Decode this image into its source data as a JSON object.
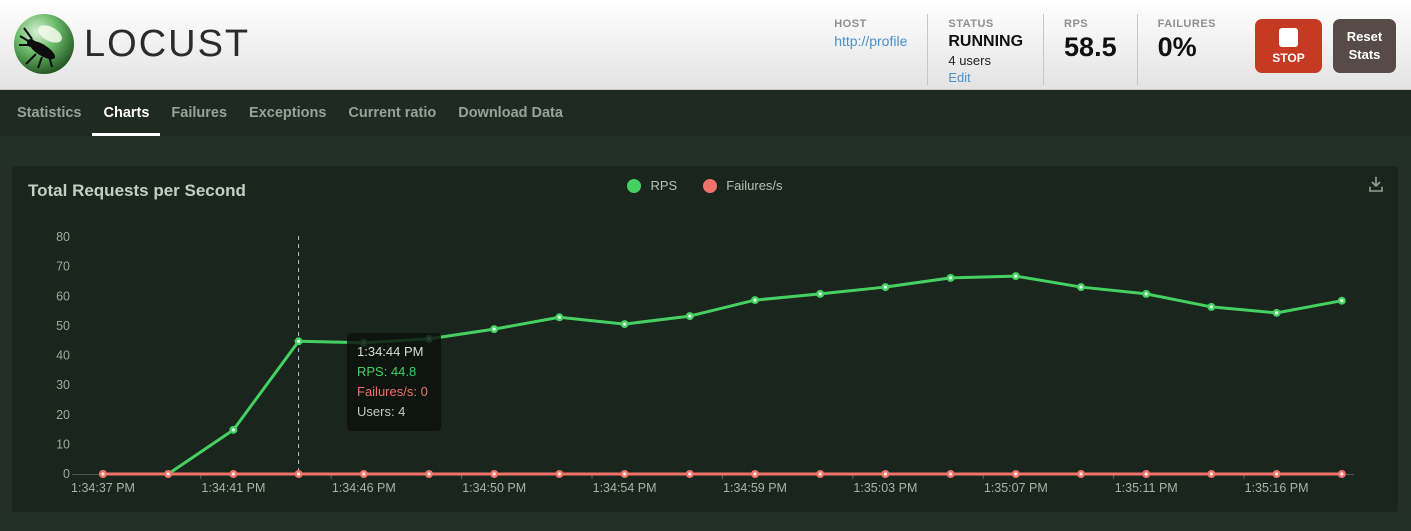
{
  "header": {
    "logo_text": "LOCUST",
    "host": {
      "label": "HOST",
      "value": "http://profile"
    },
    "status": {
      "label": "STATUS",
      "value": "RUNNING",
      "users": "4 users",
      "edit_link": "Edit"
    },
    "rps": {
      "label": "RPS",
      "value": "58.5"
    },
    "failures": {
      "label": "FAILURES",
      "value": "0%"
    },
    "stop_button": "STOP",
    "reset_button": "Reset Stats"
  },
  "nav": {
    "tabs": [
      {
        "label": "Statistics"
      },
      {
        "label": "Charts"
      },
      {
        "label": "Failures"
      },
      {
        "label": "Exceptions"
      },
      {
        "label": "Current ratio"
      },
      {
        "label": "Download Data"
      }
    ],
    "active_tab": "Charts"
  },
  "chart_data": {
    "type": "line",
    "title": "Total Requests per Second",
    "legend_position": "top-center",
    "grid": false,
    "ylim": [
      0,
      80
    ],
    "y_ticks": [
      0,
      10,
      20,
      30,
      40,
      50,
      60,
      70,
      80
    ],
    "x_tick_labels": [
      "1:34:37 PM",
      "1:34:41 PM",
      "1:34:46 PM",
      "1:34:50 PM",
      "1:34:54 PM",
      "1:34:59 PM",
      "1:35:03 PM",
      "1:35:07 PM",
      "1:35:11 PM",
      "1:35:16 PM"
    ],
    "series": [
      {
        "name": "RPS",
        "color": "#45d061",
        "values": [
          0,
          0,
          14.9,
          44.8,
          44.3,
          45.6,
          48.9,
          52.9,
          50.6,
          53.3,
          58.7,
          60.8,
          63.1,
          66.2,
          66.8,
          63.1,
          60.8,
          56.4,
          54.4,
          58.5
        ]
      },
      {
        "name": "Failures/s",
        "color": "#ef7368",
        "values": [
          0,
          0,
          0,
          0,
          0,
          0,
          0,
          0,
          0,
          0,
          0,
          0,
          0,
          0,
          0,
          0,
          0,
          0,
          0,
          0
        ]
      }
    ],
    "tooltip": {
      "point_index": 3,
      "time": "1:34:44 PM",
      "rps_label": "RPS: 44.8",
      "failures_label": "Failures/s: 0",
      "users_label": "Users: 4"
    }
  }
}
